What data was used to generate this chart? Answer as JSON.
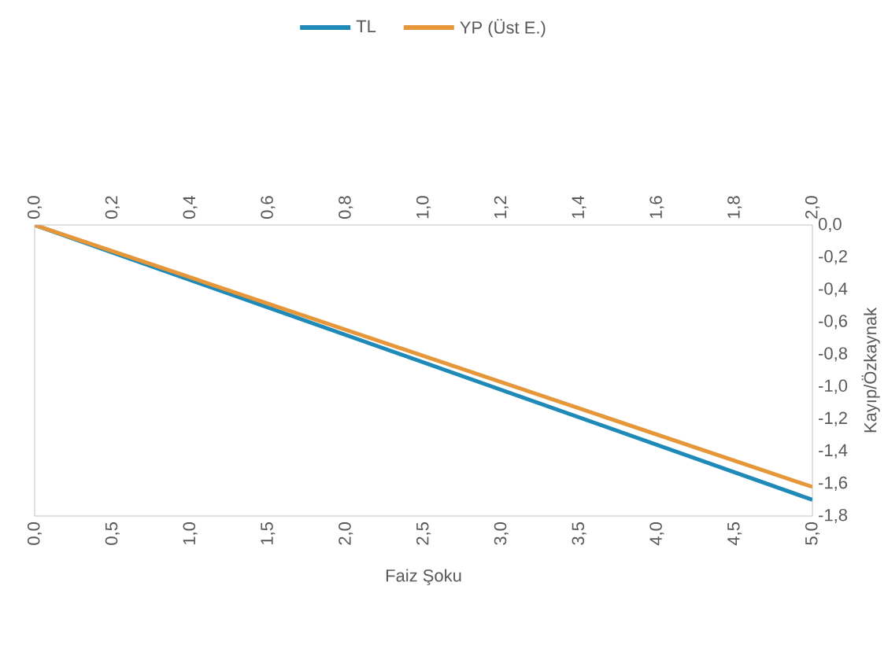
{
  "chart_data": {
    "type": "line",
    "xlabel": "Faiz Şoku",
    "ylabel": "Kayıp/Özkaynak",
    "legend": "top",
    "x": [
      0,
      5
    ],
    "series": [
      {
        "name": "TL",
        "color": "#1f8ab8",
        "values": [
          0,
          -1.7
        ]
      },
      {
        "name": "YP (Üst  E.)",
        "color": "#e5973a",
        "values": [
          0,
          -1.62
        ]
      }
    ],
    "xlim": [
      0,
      5
    ],
    "xticks": [
      {
        "value": 0,
        "label": "0,0"
      },
      {
        "value": 0.5,
        "label": "0,5"
      },
      {
        "value": 1,
        "label": "1,0"
      },
      {
        "value": 1.5,
        "label": "1,5"
      },
      {
        "value": 2,
        "label": "2,0"
      },
      {
        "value": 2.5,
        "label": "2,5"
      },
      {
        "value": 3,
        "label": "3,0"
      },
      {
        "value": 3.5,
        "label": "3,5"
      },
      {
        "value": 4,
        "label": "4,0"
      },
      {
        "value": 4.5,
        "label": "4,5"
      },
      {
        "value": 5,
        "label": "5,0"
      }
    ],
    "x2lim": [
      0,
      2
    ],
    "x2ticks": [
      {
        "value": 0,
        "label": "0,0"
      },
      {
        "value": 0.2,
        "label": "0,2"
      },
      {
        "value": 0.4,
        "label": "0,4"
      },
      {
        "value": 0.6,
        "label": "0,6"
      },
      {
        "value": 0.8,
        "label": "0,8"
      },
      {
        "value": 1,
        "label": "1,0"
      },
      {
        "value": 1.2,
        "label": "1,2"
      },
      {
        "value": 1.4,
        "label": "1,4"
      },
      {
        "value": 1.6,
        "label": "1,6"
      },
      {
        "value": 1.8,
        "label": "1,8"
      },
      {
        "value": 2,
        "label": "2,0"
      }
    ],
    "ylim": [
      -1.8,
      0
    ],
    "yticks": [
      {
        "value": 0,
        "label": "0,0"
      },
      {
        "value": -0.2,
        "label": "-0,2"
      },
      {
        "value": -0.4,
        "label": "-0,4"
      },
      {
        "value": -0.6,
        "label": "-0,6"
      },
      {
        "value": -0.8,
        "label": "-0,8"
      },
      {
        "value": -1,
        "label": "-1,0"
      },
      {
        "value": -1.2,
        "label": "-1,2"
      },
      {
        "value": -1.4,
        "label": "-1,4"
      },
      {
        "value": -1.6,
        "label": "-1,6"
      },
      {
        "value": -1.8,
        "label": "-1,8"
      }
    ],
    "grid": false,
    "marker": "none",
    "line_style": "solid"
  }
}
